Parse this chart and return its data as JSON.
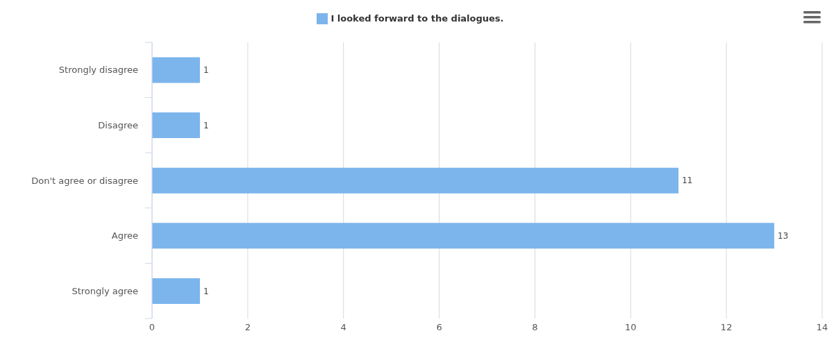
{
  "chart_data": {
    "type": "bar",
    "orientation": "horizontal",
    "categories": [
      "Strongly disagree",
      "Disagree",
      "Don't agree or disagree",
      "Agree",
      "Strongly agree"
    ],
    "series": [
      {
        "name": "I looked forward to the dialogues.",
        "color": "#7cb5ec",
        "values": [
          1,
          1,
          11,
          13,
          1
        ]
      }
    ],
    "xlim": [
      0,
      14
    ],
    "xticks": [
      0,
      2,
      4,
      6,
      8,
      10,
      12,
      14
    ],
    "grid": "x",
    "legend": "top",
    "data_labels": true
  }
}
